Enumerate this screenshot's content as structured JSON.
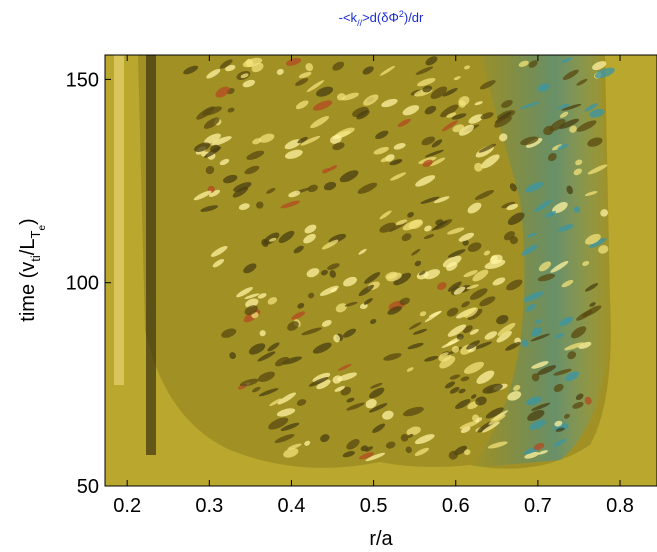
{
  "chart_data": {
    "type": "heatmap",
    "title": [
      "-<k",
      "//",
      ">d(δΦ",
      "2",
      ")/dr"
    ],
    "xlabel": "r/a",
    "ylabel": [
      "time (v",
      "ti",
      "/L",
      "T",
      "e",
      ")"
    ],
    "xlim": [
      0.173,
      0.845
    ],
    "ylim": [
      50,
      156
    ],
    "xticks": [
      0.2,
      0.3,
      0.4,
      0.5,
      0.6,
      0.7,
      0.8
    ],
    "yticks": [
      50,
      100,
      150
    ]
  }
}
